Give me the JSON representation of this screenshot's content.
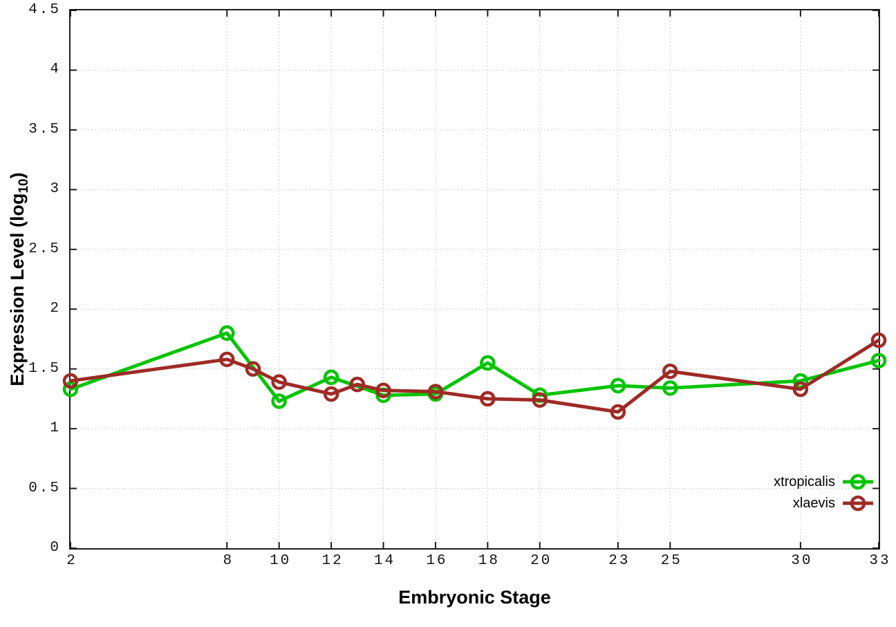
{
  "chart_data": {
    "type": "line",
    "title": "",
    "xlabel": "Embryonic Stage",
    "ylabel": "Expression Level (log10)",
    "ylabel_parts": {
      "main": "Expression Level (log",
      "sub": "10",
      "end": ")"
    },
    "xlim": [
      2,
      33
    ],
    "ylim": [
      0,
      4.5
    ],
    "grid": true,
    "legend_position": "bottom-right",
    "xticks": {
      "values": [
        2,
        8,
        10,
        12,
        14,
        16,
        18,
        20,
        23,
        25,
        30,
        33
      ],
      "labels": [
        "2",
        "8",
        "10",
        "12",
        "14",
        "16",
        "18",
        "20",
        "23",
        "25",
        "30",
        "33"
      ]
    },
    "yticks": {
      "values": [
        0,
        0.5,
        1,
        1.5,
        2,
        2.5,
        3,
        3.5,
        4,
        4.5
      ],
      "labels": [
        "0",
        "0.5",
        "1",
        "1.5",
        "2",
        "2.5",
        "3",
        "3.5",
        "4",
        "4.5"
      ]
    },
    "series": [
      {
        "name": "xtropicalis",
        "color": "#00c400",
        "x": [
          2,
          8,
          10,
          12,
          14,
          16,
          18,
          20,
          23,
          25,
          30,
          33
        ],
        "values": [
          1.33,
          1.8,
          1.23,
          1.43,
          1.28,
          1.29,
          1.55,
          1.28,
          1.36,
          1.34,
          1.4,
          1.57
        ]
      },
      {
        "name": "xlaevis",
        "color": "#9e2b26",
        "x": [
          2,
          8,
          9,
          10,
          12,
          13,
          14,
          16,
          18,
          20,
          23,
          25,
          30,
          33
        ],
        "values": [
          1.4,
          1.58,
          1.5,
          1.39,
          1.29,
          1.37,
          1.32,
          1.31,
          1.25,
          1.24,
          1.14,
          1.48,
          1.33,
          1.74
        ]
      }
    ],
    "style": {
      "grid_color": "#bcbcbc",
      "axis_color": "#1c1c1c",
      "line_width": 5,
      "marker_radius": 9
    }
  }
}
